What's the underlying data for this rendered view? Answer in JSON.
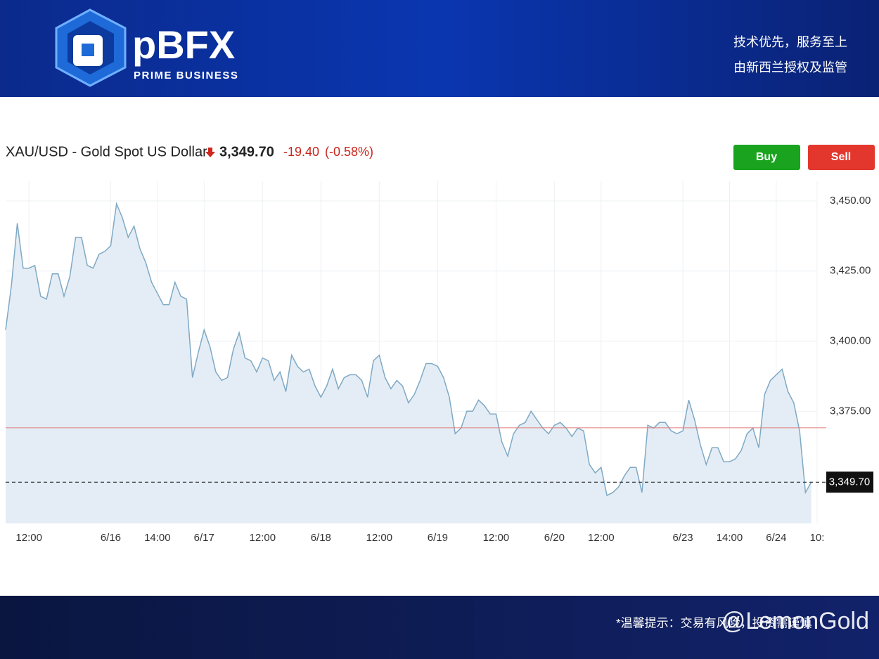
{
  "header": {
    "logo": "pBFX",
    "logo_sub": "PRIME BUSINESS",
    "slogan_1": "技术优先，服务至上",
    "slogan_2": "由新西兰授权及监管"
  },
  "quote": {
    "change": "-19.40",
    "change_pct": "(-0.58%)"
  },
  "buttons": {
    "buy": "Buy",
    "sell": "Sell"
  },
  "footer": {
    "notice": "*温馨提示：交易有风险，投资需谨慎",
    "watermark": "@LemonGold"
  },
  "chart_data": {
    "type": "line",
    "title": "XAU/USD - Gold Spot US Dollar",
    "categories": [
      null,
      null,
      null,
      null,
      "12:00",
      null,
      null,
      null,
      null,
      null,
      null,
      null,
      null,
      null,
      null,
      null,
      null,
      null,
      "6/16",
      null,
      null,
      null,
      null,
      null,
      null,
      null,
      "14:00",
      null,
      null,
      null,
      null,
      null,
      null,
      null,
      "6/17",
      null,
      null,
      null,
      null,
      null,
      null,
      null,
      null,
      null,
      "12:00",
      null,
      null,
      null,
      null,
      null,
      null,
      null,
      null,
      null,
      "6/18",
      null,
      null,
      null,
      null,
      null,
      null,
      null,
      null,
      null,
      "12:00",
      null,
      null,
      null,
      null,
      null,
      null,
      null,
      null,
      null,
      "6/19",
      null,
      null,
      null,
      null,
      null,
      null,
      null,
      null,
      null,
      "12:00",
      null,
      null,
      null,
      null,
      null,
      null,
      null,
      null,
      null,
      "6/20",
      null,
      null,
      null,
      null,
      null,
      null,
      null,
      "12:00",
      null,
      null,
      null,
      null,
      null,
      null,
      null,
      null,
      null,
      null,
      null,
      null,
      null,
      "6/23",
      null,
      null,
      null,
      null,
      null,
      null,
      null,
      "14:00",
      null,
      null,
      null,
      null,
      null,
      null,
      null,
      "6/24",
      null,
      null,
      null,
      null,
      null,
      null,
      "10:"
    ],
    "values": [
      3404,
      3420,
      3442,
      3426,
      3426,
      3427,
      3416,
      3415,
      3424,
      3424,
      3416,
      3423,
      3437,
      3437,
      3427,
      3426,
      3431,
      3432,
      3434,
      3449,
      3444,
      3437,
      3441,
      3433,
      3428,
      3421,
      3417,
      3413,
      3413,
      3421,
      3416,
      3415,
      3387,
      3396,
      3404,
      3398,
      3389,
      3386,
      3387,
      3397,
      3403,
      3394,
      3393,
      3389,
      3394,
      3393,
      3386,
      3389,
      3382,
      3395,
      3391,
      3389,
      3390,
      3384,
      3380,
      3384,
      3390,
      3383,
      3387,
      3388,
      3388,
      3386,
      3380,
      3393,
      3395,
      3387,
      3383,
      3386,
      3384,
      3378,
      3381,
      3386,
      3392,
      3392,
      3391,
      3387,
      3380,
      3367,
      3369,
      3375,
      3375,
      3379,
      3377,
      3374,
      3374,
      3364,
      3359,
      3367,
      3370,
      3371,
      3375,
      3372,
      3369,
      3367,
      3370,
      3371,
      3369,
      3366,
      3369,
      3368,
      3356,
      3353,
      3355,
      3345,
      3346,
      3348,
      3352,
      3355,
      3355,
      3346,
      3370,
      3369,
      3371,
      3371,
      3368,
      3367,
      3368,
      3379,
      3372,
      3363,
      3356,
      3362,
      3362,
      3357,
      3357,
      3358,
      3361,
      3367,
      3369,
      3362,
      3381,
      3386,
      3388,
      3390,
      3382,
      3378,
      3368,
      3346,
      3349.7,
      null
    ],
    "color": "#7fa9c5",
    "fill": "#e4edf5",
    "ylim": [
      3335,
      3457
    ],
    "yticks": [
      {
        "value": 3375,
        "label": "3,375.00"
      },
      {
        "value": 3400,
        "label": "3,400.00"
      },
      {
        "value": 3425,
        "label": "3,425.00"
      },
      {
        "value": 3450,
        "label": "3,450.00"
      }
    ],
    "ref_line": 3369.1,
    "ref_color": "#e07b7b",
    "price_line": {
      "value": 3349.7,
      "label": "3,349.70"
    },
    "grid": true
  }
}
